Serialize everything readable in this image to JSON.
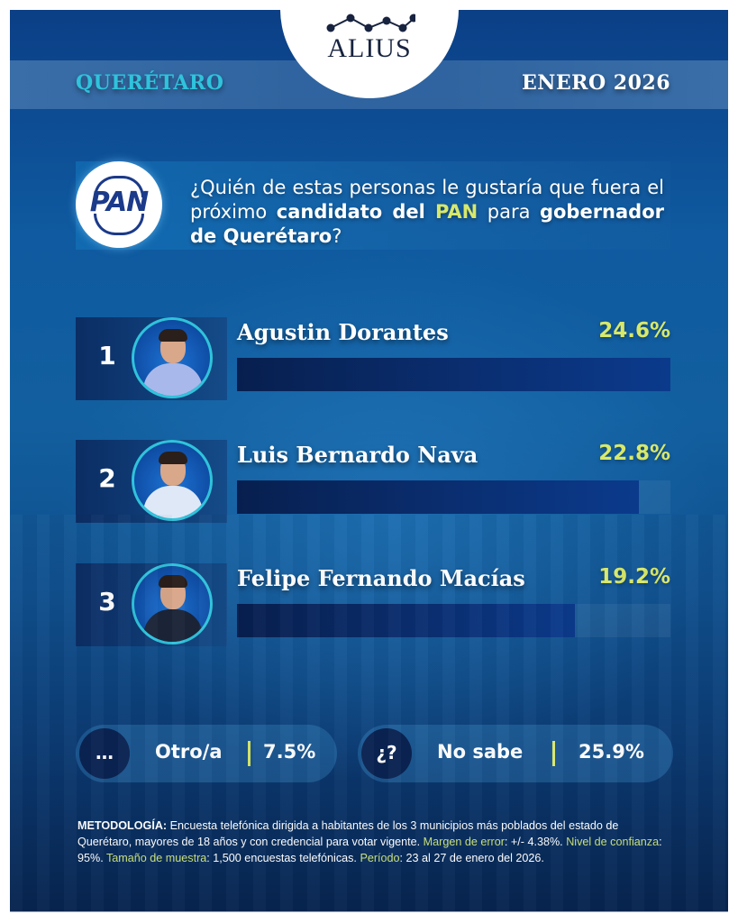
{
  "brand": {
    "name": "ALIUS"
  },
  "header": {
    "state": "QUERÉTARO",
    "date": "ENERO 2026"
  },
  "party": {
    "logo_text": "PAN"
  },
  "question": {
    "part1": "¿Quién de estas personas le gustaría que fuera el próximo ",
    "bold1": "candidato del ",
    "party_highlight": "PAN",
    "part2": " para ",
    "bold2": "gobernador de Querétaro",
    "part3": "?"
  },
  "candidates": [
    {
      "rank": "1",
      "name": "Agustin Dorantes",
      "pct_label": "24.6%",
      "value": 24.6,
      "shirt": "#a9b8ea"
    },
    {
      "rank": "2",
      "name": "Luis Bernardo Nava",
      "pct_label": "22.8%",
      "value": 22.8,
      "shirt": "#dfe8f6"
    },
    {
      "rank": "3",
      "name": "Felipe Fernando Macías",
      "pct_label": "19.2%",
      "value": 19.2,
      "shirt": "#1c2438"
    }
  ],
  "other": {
    "icon": "…",
    "label": "Otro/a",
    "pct_label": "7.5%",
    "value": 7.5
  },
  "dont_know": {
    "icon": "¿?",
    "label": "No sabe",
    "pct_label": "25.9%",
    "value": 25.9
  },
  "methodology": {
    "title": "METODOLOGÍA:",
    "desc": " Encuesta telefónica dirigida a habitantes de los 3 municipios más poblados del estado de Querétaro, mayores de 18 años y con credencial para votar vigente. ",
    "margin_label": "Margen de error",
    "margin_value": ": +/- 4.38%. ",
    "confidence_label": "Nivel de confianza",
    "confidence_value": ": 95%. ",
    "sample_label": "Tamaño de muestra",
    "sample_value": ": 1,500 encuestas telefónicas. ",
    "period_label": "Período",
    "period_value": ": 23 al 27 de enero del 2026."
  },
  "colors": {
    "accent_yellow": "#d8e86a",
    "accent_cyan": "#2fc3dc",
    "bar": "#0a2d6e"
  },
  "chart_data": {
    "type": "bar",
    "orientation": "horizontal",
    "title": "¿Quién de estas personas le gustaría que fuera el próximo candidato del PAN para gobernador de Querétaro?",
    "subtitle": "QUERÉTARO · ENERO 2026",
    "categories": [
      "Agustin Dorantes",
      "Luis Bernardo Nava",
      "Felipe Fernando Macías",
      "Otro/a",
      "No sabe"
    ],
    "values": [
      24.6,
      22.8,
      19.2,
      7.5,
      25.9
    ],
    "unit": "%",
    "xlabel": "",
    "ylabel": "",
    "xlim": [
      0,
      24.6
    ],
    "grid": false,
    "legend": null
  }
}
